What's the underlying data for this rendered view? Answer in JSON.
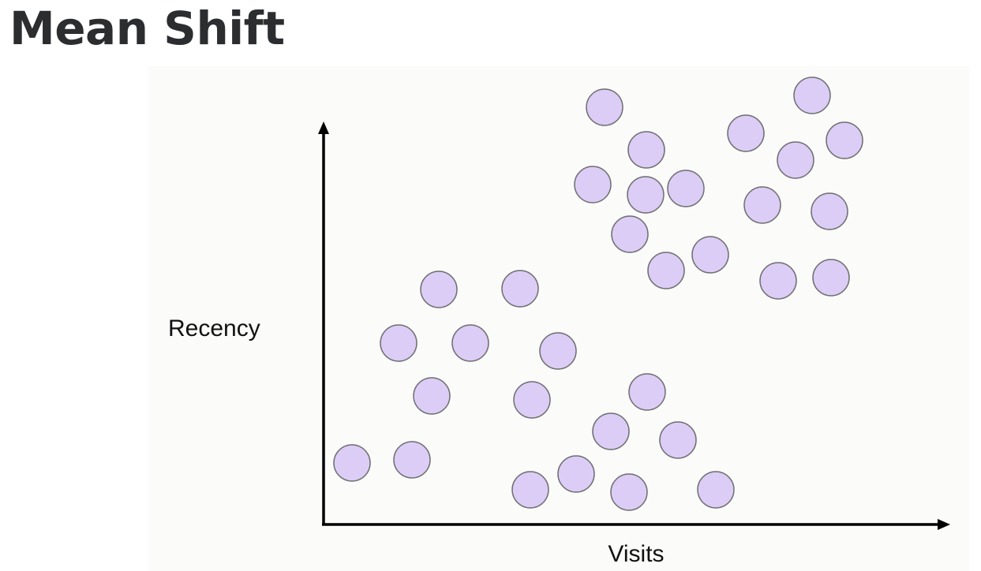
{
  "header": {
    "title": "Mean Shift"
  },
  "diagram": {
    "y_axis_label": "Recency",
    "x_axis_label": "Visits"
  }
}
